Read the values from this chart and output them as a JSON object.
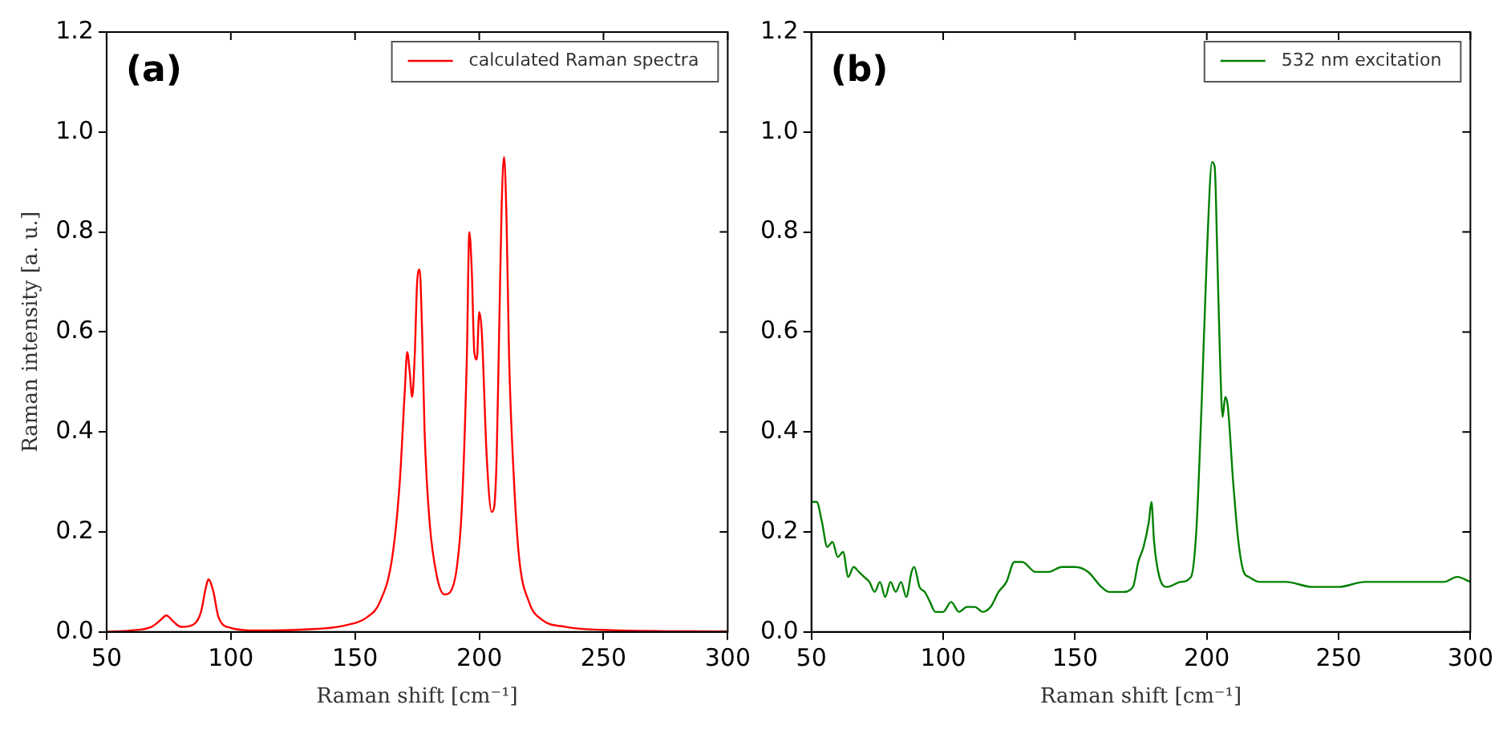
{
  "chart_data": [
    {
      "type": "line",
      "xlabel": "Raman shift [cm⁻¹]",
      "ylabel": "Raman intensity [a. u.]",
      "annotations": [
        "(a)"
      ],
      "x": [
        50,
        60,
        68,
        72,
        74,
        77,
        80,
        85,
        88,
        90,
        91,
        93,
        95,
        100,
        110,
        130,
        145,
        155,
        160,
        165,
        168,
        170,
        171,
        172,
        173,
        174,
        175,
        176,
        177,
        178,
        180,
        183,
        186,
        188,
        191,
        193,
        195,
        196,
        197,
        198,
        199,
        200,
        201,
        203,
        205,
        206,
        207,
        208,
        209,
        210,
        211,
        212,
        214,
        216,
        220,
        225,
        235,
        250,
        300
      ],
      "series": [
        {
          "name": "calculated Raman spectra",
          "color": "#ff0000",
          "values": [
            0,
            0.003,
            0.01,
            0.025,
            0.033,
            0.02,
            0.01,
            0.015,
            0.04,
            0.09,
            0.105,
            0.08,
            0.03,
            0.008,
            0.003,
            0.005,
            0.012,
            0.03,
            0.06,
            0.15,
            0.3,
            0.48,
            0.56,
            0.52,
            0.47,
            0.55,
            0.7,
            0.725,
            0.6,
            0.4,
            0.22,
            0.11,
            0.075,
            0.078,
            0.13,
            0.25,
            0.55,
            0.8,
            0.72,
            0.56,
            0.545,
            0.64,
            0.6,
            0.35,
            0.24,
            0.25,
            0.35,
            0.6,
            0.85,
            0.95,
            0.82,
            0.55,
            0.3,
            0.15,
            0.06,
            0.025,
            0.01,
            0.004,
            0.001
          ]
        }
      ],
      "xlim": [
        50,
        300
      ],
      "xticks": [
        50,
        100,
        150,
        200,
        250,
        300
      ],
      "ylim": [
        0,
        1.2
      ],
      "yticks": [
        {
          "value": 0,
          "label": "0.0"
        },
        {
          "value": 0.2,
          "label": "0.2"
        },
        {
          "value": 0.4,
          "label": "0.4"
        },
        {
          "value": 0.6,
          "label": "0.6"
        },
        {
          "value": 0.8,
          "label": "0.8"
        },
        {
          "value": 1,
          "label": "1.0"
        },
        {
          "value": 1.2,
          "label": "1.2"
        }
      ],
      "legend": "top right"
    },
    {
      "type": "line",
      "xlabel": "Raman shift [cm⁻¹]",
      "annotations": [
        "(b)"
      ],
      "x": [
        50,
        52,
        54,
        56,
        58,
        60,
        62,
        64,
        66,
        68,
        70,
        72,
        74,
        76,
        78,
        80,
        82,
        84,
        86,
        88,
        89,
        91,
        93,
        95,
        97,
        100,
        103,
        106,
        109,
        112,
        115,
        118,
        121,
        124,
        127,
        130,
        135,
        140,
        145,
        150,
        155,
        160,
        163,
        168,
        172,
        174,
        176,
        178,
        179,
        180,
        182,
        185,
        190,
        194,
        196,
        198,
        200,
        202,
        203,
        204,
        205,
        206,
        207,
        208,
        210,
        212,
        214,
        216,
        220,
        230,
        240,
        250,
        260,
        270,
        280,
        290,
        295,
        300
      ],
      "series": [
        {
          "name": "532 nm excitation",
          "color": "#008000",
          "values": [
            0.26,
            0.26,
            0.22,
            0.17,
            0.18,
            0.15,
            0.16,
            0.11,
            0.13,
            0.12,
            0.11,
            0.1,
            0.08,
            0.1,
            0.07,
            0.1,
            0.08,
            0.1,
            0.07,
            0.12,
            0.13,
            0.09,
            0.08,
            0.06,
            0.04,
            0.04,
            0.06,
            0.04,
            0.05,
            0.05,
            0.04,
            0.05,
            0.08,
            0.1,
            0.14,
            0.14,
            0.12,
            0.12,
            0.13,
            0.13,
            0.12,
            0.09,
            0.08,
            0.08,
            0.09,
            0.14,
            0.17,
            0.22,
            0.26,
            0.18,
            0.11,
            0.09,
            0.1,
            0.11,
            0.2,
            0.45,
            0.75,
            0.94,
            0.93,
            0.75,
            0.55,
            0.43,
            0.47,
            0.45,
            0.3,
            0.18,
            0.12,
            0.11,
            0.1,
            0.1,
            0.09,
            0.09,
            0.1,
            0.1,
            0.1,
            0.1,
            0.11,
            0.1
          ]
        }
      ],
      "xlim": [
        50,
        300
      ],
      "xticks": [
        50,
        100,
        150,
        200,
        250,
        300
      ],
      "ylim": [
        0,
        1.2
      ],
      "yticks": [
        {
          "value": 0,
          "label": "0.0"
        },
        {
          "value": 0.2,
          "label": "0.2"
        },
        {
          "value": 0.4,
          "label": "0.4"
        },
        {
          "value": 0.6,
          "label": "0.6"
        },
        {
          "value": 0.8,
          "label": "0.8"
        },
        {
          "value": 1,
          "label": "1.0"
        },
        {
          "value": 1.2,
          "label": "1.2"
        }
      ],
      "legend": "top right"
    }
  ]
}
